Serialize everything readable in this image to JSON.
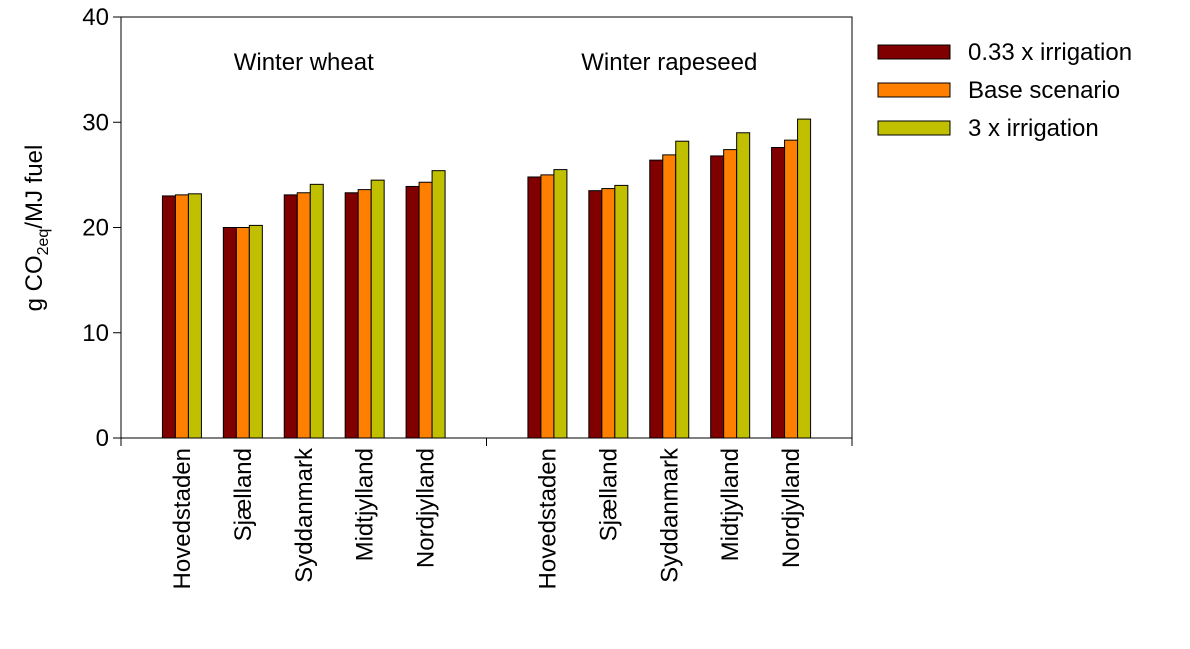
{
  "chart_data": {
    "type": "bar",
    "ylabel": {
      "text": "g CO",
      "subscript": "2eq",
      "rest": "/MJ fuel"
    },
    "annotations": [
      "Winter wheat",
      "Winter rapeseed"
    ],
    "categories": [
      "Hovedstaden",
      "Sjælland",
      "Syddanmark",
      "Midtjylland",
      "Nordjylland",
      null,
      "Hovedstaden",
      "Sjælland",
      "Syddanmark",
      "Midtjylland",
      "Nordjylland"
    ],
    "series": [
      {
        "name": "0.33 x irrigation",
        "color": "#800000",
        "values": [
          23.0,
          20.0,
          23.1,
          23.3,
          23.9,
          null,
          24.8,
          23.5,
          26.4,
          26.8,
          27.6
        ]
      },
      {
        "name": "Base scenario",
        "color": "#ff8000",
        "values": [
          23.1,
          20.0,
          23.3,
          23.6,
          24.3,
          null,
          25.0,
          23.7,
          26.9,
          27.4,
          28.3
        ]
      },
      {
        "name": "3 x irrigation",
        "color": "#c0c000",
        "values": [
          23.2,
          20.2,
          24.1,
          24.5,
          25.4,
          null,
          25.5,
          24.0,
          28.2,
          29.0,
          30.3
        ]
      }
    ],
    "ylim": [
      0,
      40
    ],
    "yticks": [
      0,
      10,
      20,
      30,
      40
    ],
    "legend": "outside-right"
  }
}
